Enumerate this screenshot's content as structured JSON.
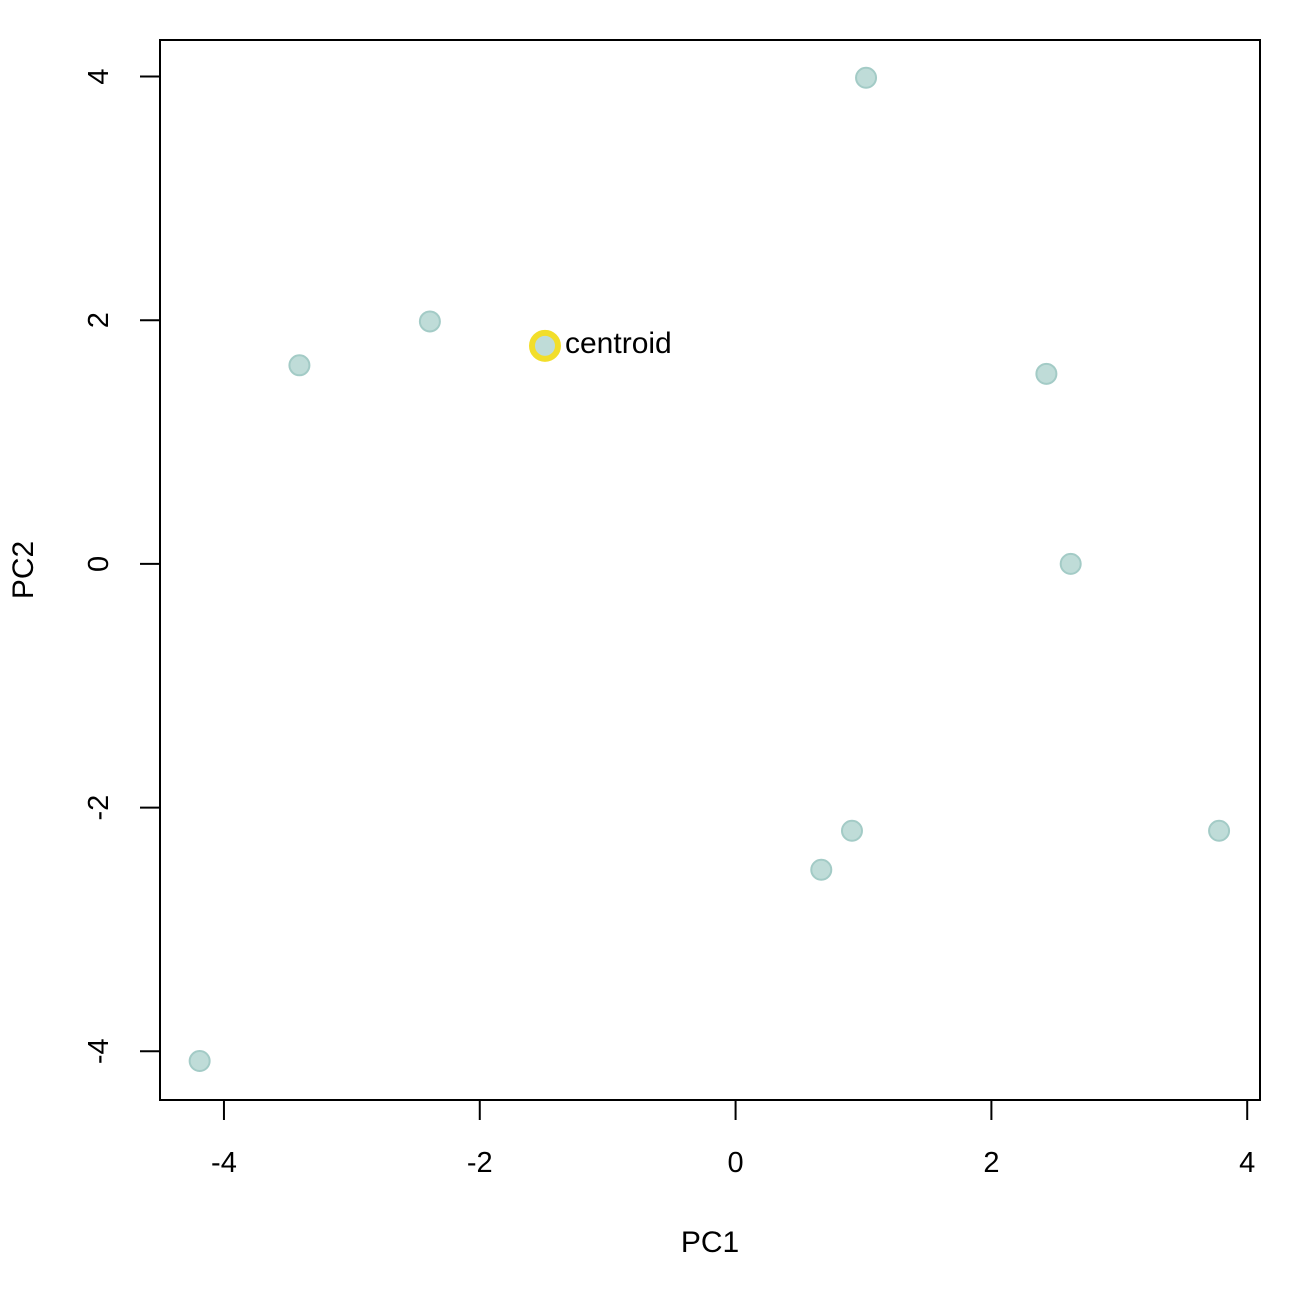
{
  "chart_data": {
    "type": "scatter",
    "title": "",
    "xlabel": "PC1",
    "ylabel": "PC2",
    "xlim": [
      -4.5,
      4.1
    ],
    "ylim": [
      -4.4,
      4.3
    ],
    "xticks": [
      -4,
      -2,
      0,
      2,
      4
    ],
    "yticks": [
      -4,
      -2,
      0,
      2,
      4
    ],
    "xtick_labels": [
      "-4",
      "-2",
      "0",
      "2",
      "4"
    ],
    "ytick_labels": [
      "-4",
      "-2",
      "0",
      "2",
      "4"
    ],
    "grid": false,
    "legend": "none",
    "points": [
      {
        "x": 1.02,
        "y": 3.99
      },
      {
        "x": -2.39,
        "y": 1.99
      },
      {
        "x": -3.41,
        "y": 1.63
      },
      {
        "x": 2.43,
        "y": 1.56
      },
      {
        "x": 2.62,
        "y": 0.0
      },
      {
        "x": 0.91,
        "y": -2.19
      },
      {
        "x": 0.67,
        "y": -2.51
      },
      {
        "x": 3.78,
        "y": -2.19
      },
      {
        "x": -4.19,
        "y": -4.08
      }
    ],
    "highlight": {
      "x": -1.49,
      "y": 1.79,
      "label": "centroid"
    },
    "colors": {
      "point_fill": "#bfdcd8",
      "point_stroke": "#a3cbc6",
      "highlight_ring": "#f2de2a",
      "axis": "#000000"
    }
  }
}
